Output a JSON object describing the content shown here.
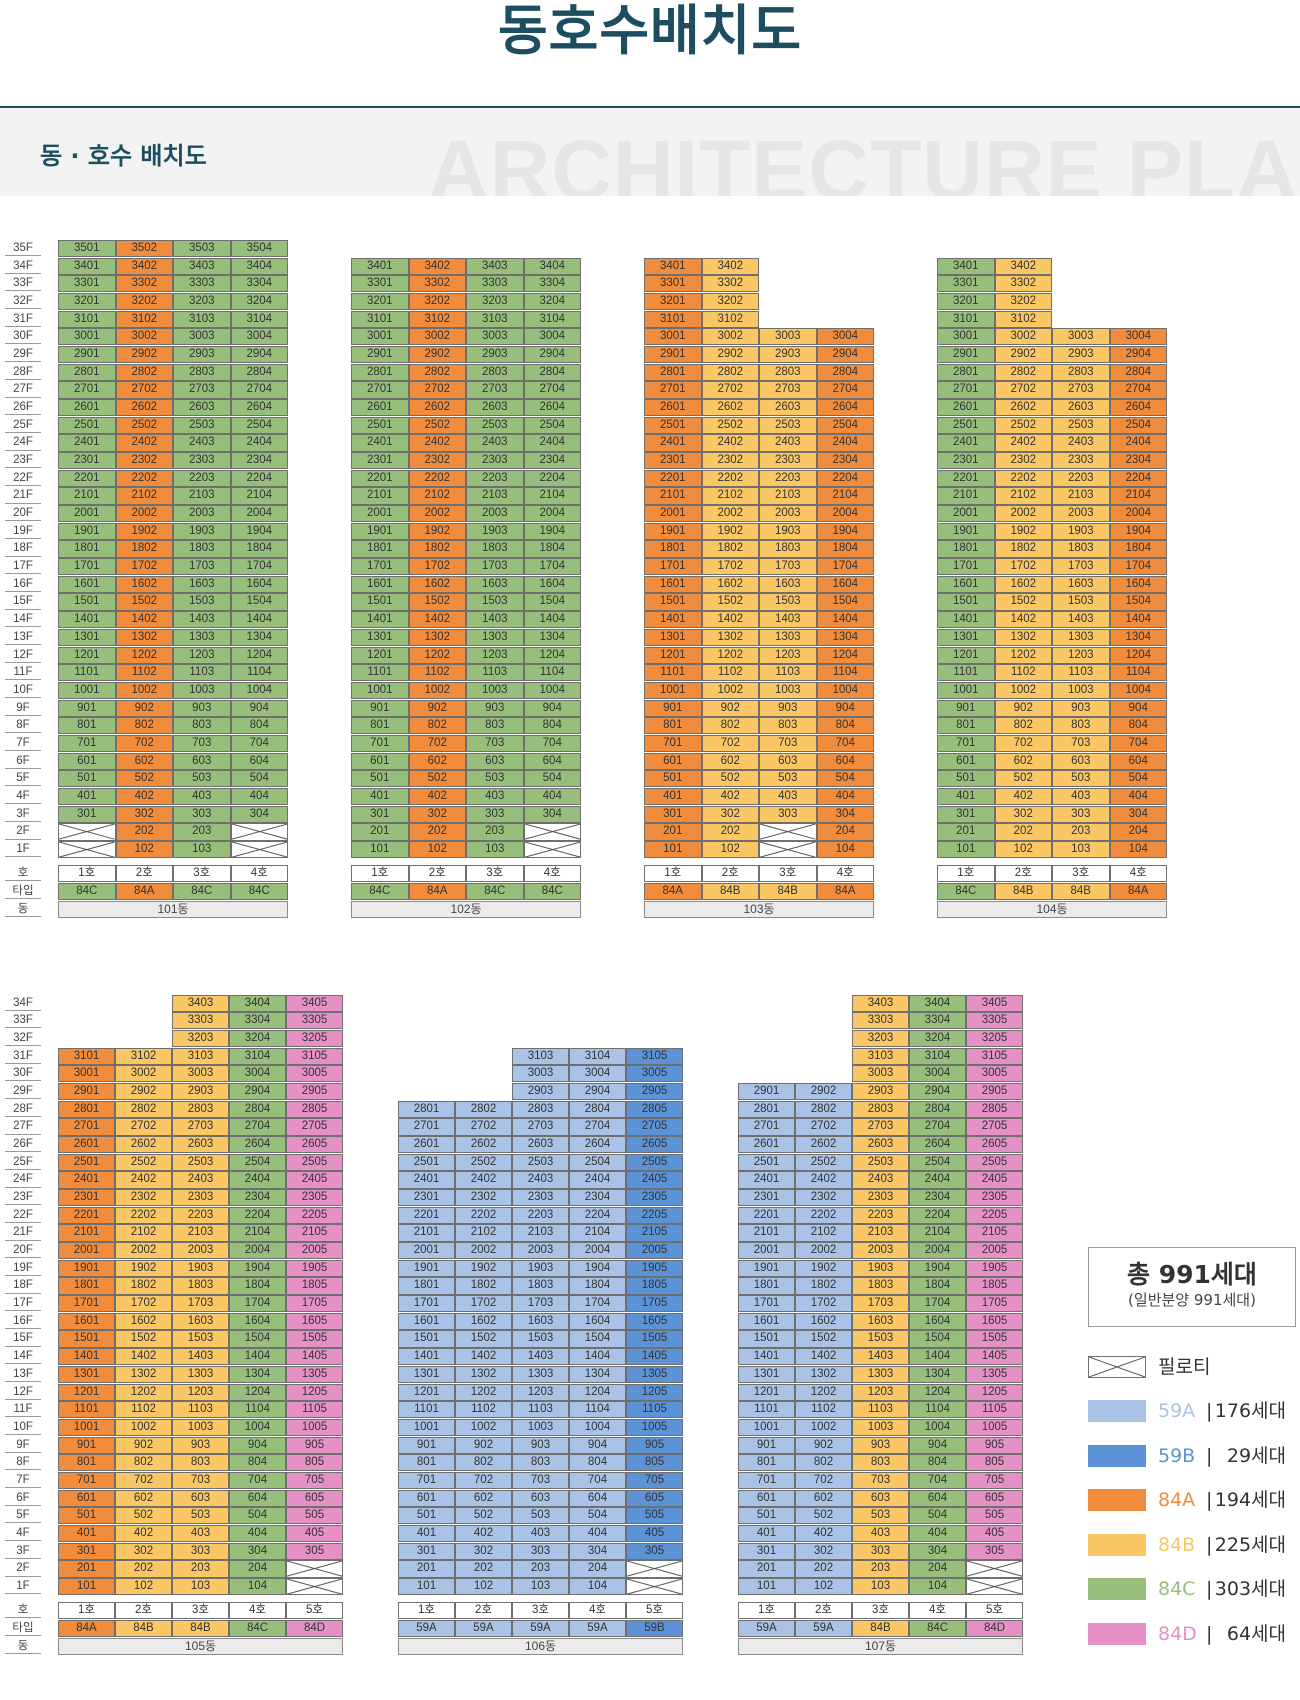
{
  "page": {
    "title": "동호수배치도",
    "section_title": "동 · 호수 배치도",
    "watermark": "ARCHITECTURE PLAN"
  },
  "colors": {
    "59A": "#a9c2e6",
    "59B": "#5b93d6",
    "84A": "#f08c3c",
    "84B": "#fbc765",
    "84C": "#98be7c",
    "84D": "#e591c6",
    "pilotis": "#ffffff"
  },
  "row_labels": {
    "line": "호",
    "type": "타입",
    "dong": "동"
  },
  "buildings": [
    {
      "name": "101동",
      "top_floor": 35,
      "lines": [
        {
          "label": "1호",
          "type": "84C",
          "min_floor": 3,
          "max_floor": 35,
          "pilotis": [
            1,
            2
          ]
        },
        {
          "label": "2호",
          "type": "84A",
          "min_floor": 1,
          "max_floor": 35,
          "pilotis": []
        },
        {
          "label": "3호",
          "type": "84C",
          "min_floor": 1,
          "max_floor": 35,
          "pilotis": []
        },
        {
          "label": "4호",
          "type": "84C",
          "min_floor": 3,
          "max_floor": 35,
          "pilotis": [
            1,
            2
          ]
        }
      ]
    },
    {
      "name": "102동",
      "top_floor": 34,
      "lines": [
        {
          "label": "1호",
          "type": "84C",
          "min_floor": 1,
          "max_floor": 34,
          "pilotis": []
        },
        {
          "label": "2호",
          "type": "84A",
          "min_floor": 1,
          "max_floor": 34,
          "pilotis": []
        },
        {
          "label": "3호",
          "type": "84C",
          "min_floor": 1,
          "max_floor": 34,
          "pilotis": []
        },
        {
          "label": "4호",
          "type": "84C",
          "min_floor": 3,
          "max_floor": 34,
          "pilotis": [
            1,
            2
          ]
        }
      ]
    },
    {
      "name": "103동",
      "top_floor": 34,
      "lines": [
        {
          "label": "1호",
          "type": "84A",
          "min_floor": 1,
          "max_floor": 34,
          "pilotis": []
        },
        {
          "label": "2호",
          "type": "84B",
          "min_floor": 1,
          "max_floor": 34,
          "pilotis": []
        },
        {
          "label": "3호",
          "type": "84B",
          "min_floor": 3,
          "max_floor": 30,
          "pilotis": [
            1,
            2
          ]
        },
        {
          "label": "4호",
          "type": "84A",
          "min_floor": 1,
          "max_floor": 30,
          "pilotis": []
        }
      ]
    },
    {
      "name": "104동",
      "top_floor": 34,
      "lines": [
        {
          "label": "1호",
          "type": "84C",
          "min_floor": 1,
          "max_floor": 34,
          "pilotis": []
        },
        {
          "label": "2호",
          "type": "84B",
          "min_floor": 1,
          "max_floor": 34,
          "pilotis": []
        },
        {
          "label": "3호",
          "type": "84B",
          "min_floor": 1,
          "max_floor": 30,
          "pilotis": []
        },
        {
          "label": "4호",
          "type": "84A",
          "min_floor": 1,
          "max_floor": 30,
          "pilotis": []
        }
      ]
    },
    {
      "name": "105동",
      "top_floor": 34,
      "lines": [
        {
          "label": "1호",
          "type": "84A",
          "min_floor": 1,
          "max_floor": 31,
          "pilotis": []
        },
        {
          "label": "2호",
          "type": "84B",
          "min_floor": 1,
          "max_floor": 31,
          "pilotis": []
        },
        {
          "label": "3호",
          "type": "84B",
          "min_floor": 1,
          "max_floor": 34,
          "pilotis": []
        },
        {
          "label": "4호",
          "type": "84C",
          "min_floor": 1,
          "max_floor": 34,
          "pilotis": []
        },
        {
          "label": "5호",
          "type": "84D",
          "min_floor": 3,
          "max_floor": 34,
          "pilotis": [
            1,
            2
          ]
        }
      ]
    },
    {
      "name": "106동",
      "top_floor": 34,
      "lines": [
        {
          "label": "1호",
          "type": "59A",
          "min_floor": 1,
          "max_floor": 28,
          "pilotis": []
        },
        {
          "label": "2호",
          "type": "59A",
          "min_floor": 1,
          "max_floor": 28,
          "pilotis": []
        },
        {
          "label": "3호",
          "type": "59A",
          "min_floor": 1,
          "max_floor": 31,
          "pilotis": []
        },
        {
          "label": "4호",
          "type": "59A",
          "min_floor": 1,
          "max_floor": 31,
          "pilotis": []
        },
        {
          "label": "5호",
          "type": "59B",
          "min_floor": 3,
          "max_floor": 31,
          "pilotis": [
            1,
            2
          ]
        }
      ]
    },
    {
      "name": "107동",
      "top_floor": 34,
      "lines": [
        {
          "label": "1호",
          "type": "59A",
          "min_floor": 1,
          "max_floor": 29,
          "pilotis": []
        },
        {
          "label": "2호",
          "type": "59A",
          "min_floor": 1,
          "max_floor": 29,
          "pilotis": []
        },
        {
          "label": "3호",
          "type": "84B",
          "min_floor": 1,
          "max_floor": 34,
          "pilotis": []
        },
        {
          "label": "4호",
          "type": "84C",
          "min_floor": 1,
          "max_floor": 34,
          "pilotis": []
        },
        {
          "label": "5호",
          "type": "84D",
          "min_floor": 3,
          "max_floor": 34,
          "pilotis": [
            1,
            2
          ]
        }
      ]
    }
  ],
  "summary": {
    "total": "총 991세대",
    "note": "(일반분양 991세대)"
  },
  "legend": {
    "pilotis_label": "필로티",
    "items": [
      {
        "type": "59A",
        "count": "176세대"
      },
      {
        "type": "59B",
        "count": "29세대"
      },
      {
        "type": "84A",
        "count": "194세대"
      },
      {
        "type": "84B",
        "count": "225세대"
      },
      {
        "type": "84C",
        "count": "303세대"
      },
      {
        "type": "84D",
        "count": "64세대"
      }
    ]
  }
}
